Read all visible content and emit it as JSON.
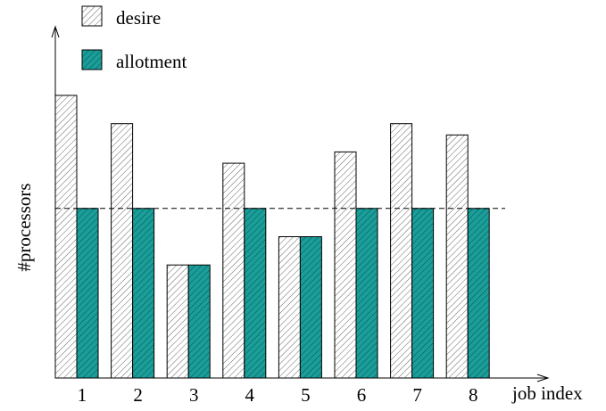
{
  "chart_data": {
    "type": "bar",
    "title": "",
    "xlabel": "job index",
    "ylabel": "#processors",
    "categories": [
      "1",
      "2",
      "3",
      "4",
      "5",
      "6",
      "7",
      "8"
    ],
    "series": [
      {
        "name": "desire",
        "values": [
          10,
          9,
          4,
          7.6,
          5,
          8,
          9,
          8.6
        ],
        "fill": "#ffffff",
        "hatch": true
      },
      {
        "name": "allotment",
        "values": [
          6,
          6,
          4,
          6,
          5,
          6,
          6,
          6
        ],
        "fill": "#1a9e9a",
        "hatch": true
      }
    ],
    "ylim": [
      0,
      10.8
    ],
    "reference_line": 6,
    "legend_position": "top-left",
    "grid": false,
    "show_y_ticks": false
  }
}
